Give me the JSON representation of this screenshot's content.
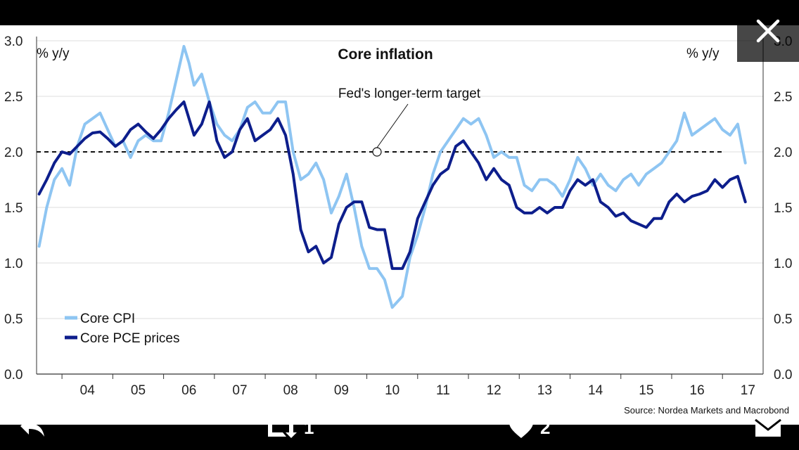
{
  "chart_data": {
    "type": "line",
    "title": "Core inflation",
    "ylabel_left": "% y/y",
    "ylabel_right": "% y/y",
    "ylim": [
      0.0,
      3.0
    ],
    "xlim": [
      2003.5,
      2017.8
    ],
    "y_ticks": [
      "0.0",
      "0.5",
      "1.0",
      "1.5",
      "2.0",
      "2.5",
      "3.0"
    ],
    "y_tick_values": [
      0.0,
      0.5,
      1.0,
      1.5,
      2.0,
      2.5,
      3.0
    ],
    "x_tick_labels": [
      "04",
      "05",
      "06",
      "07",
      "08",
      "09",
      "10",
      "11",
      "12",
      "13",
      "14",
      "15",
      "16",
      "17"
    ],
    "target_value": 2.0,
    "annotation": "Fed's longer-term target",
    "annotation_point": [
      2010.2,
      2.0
    ],
    "legend": [
      "Core CPI",
      "Core PCE prices"
    ],
    "series": [
      {
        "name": "Core CPI",
        "color": "#8ec5f2",
        "x": [
          2003.55,
          2003.7,
          2003.85,
          2004.0,
          2004.15,
          2004.3,
          2004.45,
          2004.6,
          2004.75,
          2004.9,
          2005.05,
          2005.2,
          2005.35,
          2005.5,
          2005.65,
          2005.8,
          2005.95,
          2006.1,
          2006.25,
          2006.4,
          2006.5,
          2006.6,
          2006.75,
          2006.9,
          2007.05,
          2007.2,
          2007.35,
          2007.5,
          2007.65,
          2007.8,
          2007.95,
          2008.1,
          2008.25,
          2008.4,
          2008.55,
          2008.7,
          2008.85,
          2009.0,
          2009.15,
          2009.3,
          2009.45,
          2009.6,
          2009.75,
          2009.9,
          2010.05,
          2010.2,
          2010.35,
          2010.5,
          2010.7,
          2010.85,
          2011.0,
          2011.15,
          2011.3,
          2011.45,
          2011.6,
          2011.75,
          2011.9,
          2012.05,
          2012.2,
          2012.35,
          2012.5,
          2012.65,
          2012.8,
          2012.95,
          2013.1,
          2013.25,
          2013.4,
          2013.55,
          2013.7,
          2013.85,
          2014.0,
          2014.15,
          2014.3,
          2014.45,
          2014.6,
          2014.75,
          2014.9,
          2015.05,
          2015.2,
          2015.35,
          2015.5,
          2015.65,
          2015.8,
          2015.95,
          2016.1,
          2016.25,
          2016.4,
          2016.55,
          2016.7,
          2016.85,
          2017.0,
          2017.15,
          2017.3,
          2017.45
        ],
        "values": [
          1.15,
          1.5,
          1.75,
          1.85,
          1.7,
          2.05,
          2.25,
          2.3,
          2.35,
          2.2,
          2.05,
          2.1,
          1.95,
          2.1,
          2.15,
          2.1,
          2.1,
          2.35,
          2.65,
          2.95,
          2.8,
          2.6,
          2.7,
          2.45,
          2.25,
          2.15,
          2.1,
          2.2,
          2.4,
          2.45,
          2.35,
          2.35,
          2.45,
          2.45,
          2.0,
          1.75,
          1.8,
          1.9,
          1.75,
          1.45,
          1.6,
          1.8,
          1.5,
          1.15,
          0.95,
          0.95,
          0.85,
          0.6,
          0.7,
          1.05,
          1.25,
          1.5,
          1.8,
          2.0,
          2.1,
          2.2,
          2.3,
          2.25,
          2.3,
          2.15,
          1.95,
          2.0,
          1.95,
          1.95,
          1.7,
          1.65,
          1.75,
          1.75,
          1.7,
          1.6,
          1.75,
          1.95,
          1.85,
          1.7,
          1.8,
          1.7,
          1.65,
          1.75,
          1.8,
          1.7,
          1.8,
          1.85,
          1.9,
          2.0,
          2.1,
          2.35,
          2.15,
          2.2,
          2.25,
          2.3,
          2.2,
          2.15,
          2.25,
          1.9
        ]
      },
      {
        "name": "Core PCE prices",
        "color": "#0d1e8c",
        "x": [
          2003.55,
          2003.7,
          2003.85,
          2004.0,
          2004.15,
          2004.3,
          2004.45,
          2004.6,
          2004.75,
          2004.9,
          2005.05,
          2005.2,
          2005.35,
          2005.5,
          2005.65,
          2005.8,
          2005.95,
          2006.1,
          2006.25,
          2006.4,
          2006.5,
          2006.6,
          2006.75,
          2006.9,
          2007.05,
          2007.2,
          2007.35,
          2007.5,
          2007.65,
          2007.8,
          2007.95,
          2008.1,
          2008.25,
          2008.4,
          2008.55,
          2008.7,
          2008.85,
          2009.0,
          2009.15,
          2009.3,
          2009.45,
          2009.6,
          2009.75,
          2009.9,
          2010.05,
          2010.2,
          2010.35,
          2010.5,
          2010.7,
          2010.85,
          2011.0,
          2011.15,
          2011.3,
          2011.45,
          2011.6,
          2011.75,
          2011.9,
          2012.05,
          2012.2,
          2012.35,
          2012.5,
          2012.65,
          2012.8,
          2012.95,
          2013.1,
          2013.25,
          2013.4,
          2013.55,
          2013.7,
          2013.85,
          2014.0,
          2014.15,
          2014.3,
          2014.45,
          2014.6,
          2014.75,
          2014.9,
          2015.05,
          2015.2,
          2015.35,
          2015.5,
          2015.65,
          2015.8,
          2015.95,
          2016.1,
          2016.25,
          2016.4,
          2016.55,
          2016.7,
          2016.85,
          2017.0,
          2017.15,
          2017.3,
          2017.45
        ],
        "values": [
          1.62,
          1.75,
          1.9,
          2.0,
          1.98,
          2.05,
          2.12,
          2.17,
          2.18,
          2.12,
          2.05,
          2.1,
          2.2,
          2.25,
          2.18,
          2.12,
          2.2,
          2.3,
          2.38,
          2.45,
          2.3,
          2.15,
          2.25,
          2.45,
          2.1,
          1.95,
          2.0,
          2.2,
          2.3,
          2.1,
          2.15,
          2.2,
          2.3,
          2.15,
          1.8,
          1.3,
          1.1,
          1.15,
          1.0,
          1.05,
          1.35,
          1.5,
          1.55,
          1.55,
          1.32,
          1.3,
          1.3,
          0.95,
          0.95,
          1.1,
          1.4,
          1.55,
          1.7,
          1.8,
          1.85,
          2.05,
          2.1,
          2.0,
          1.9,
          1.75,
          1.85,
          1.75,
          1.7,
          1.5,
          1.45,
          1.45,
          1.5,
          1.45,
          1.5,
          1.5,
          1.65,
          1.75,
          1.7,
          1.75,
          1.55,
          1.5,
          1.42,
          1.45,
          1.38,
          1.35,
          1.32,
          1.4,
          1.4,
          1.55,
          1.62,
          1.55,
          1.6,
          1.62,
          1.65,
          1.75,
          1.68,
          1.75,
          1.78,
          1.55
        ]
      }
    ],
    "source": "Source: Nordea Markets and Macrobond"
  },
  "ui": {
    "retweet_count": "1",
    "like_count": "2"
  }
}
